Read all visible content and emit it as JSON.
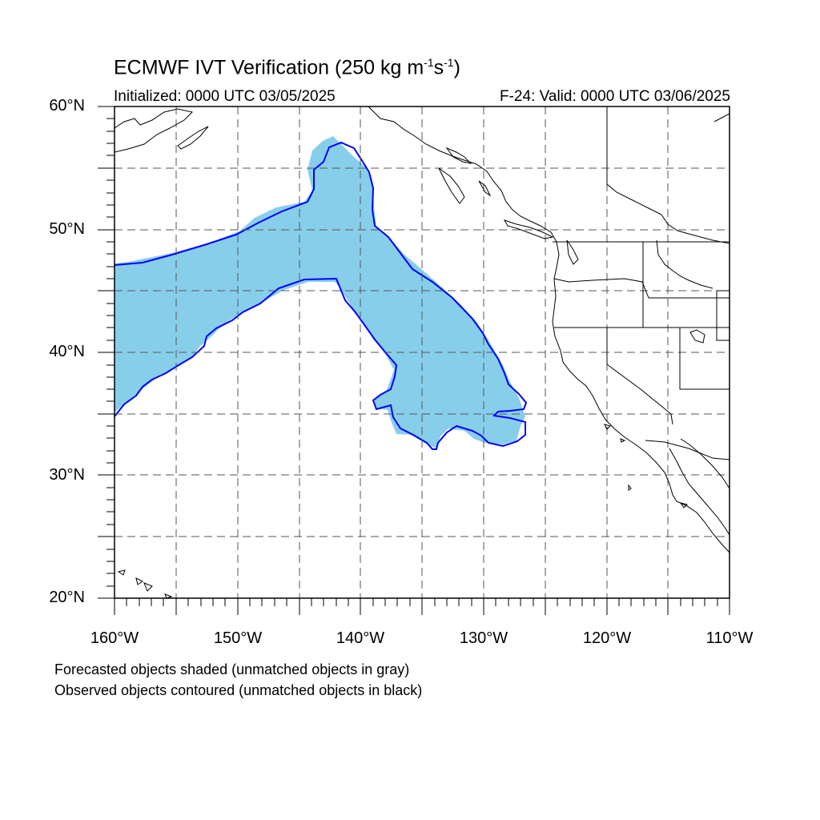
{
  "title": {
    "main": "ECMWF IVT Verification (250 kg m",
    "exp1": "-1",
    "mid": "s",
    "exp2": "-1",
    "close": ")"
  },
  "subtitle": {
    "initialized": "Initialized: 0000 UTC 03/05/2025",
    "valid": "F-24: Valid: 0000 UTC 03/06/2025"
  },
  "map": {
    "lon_range": [
      -160,
      -110
    ],
    "lat_range": [
      20,
      60
    ],
    "lat_labels": [
      "60°N",
      "50°N",
      "40°N",
      "30°N",
      "20°N"
    ],
    "lon_labels": [
      "160°W",
      "150°W",
      "140°W",
      "130°W",
      "120°W",
      "110°W"
    ],
    "gridlines": "dashed",
    "colors": {
      "forecast_fill": "#87ceeb",
      "observed_contour": "#0000ff",
      "coastline": "#000000"
    }
  },
  "footnotes": {
    "line1": "Forecasted objects shaded (unmatched objects in gray)",
    "line2": "Observed objects contoured (unmatched objects in black)"
  }
}
